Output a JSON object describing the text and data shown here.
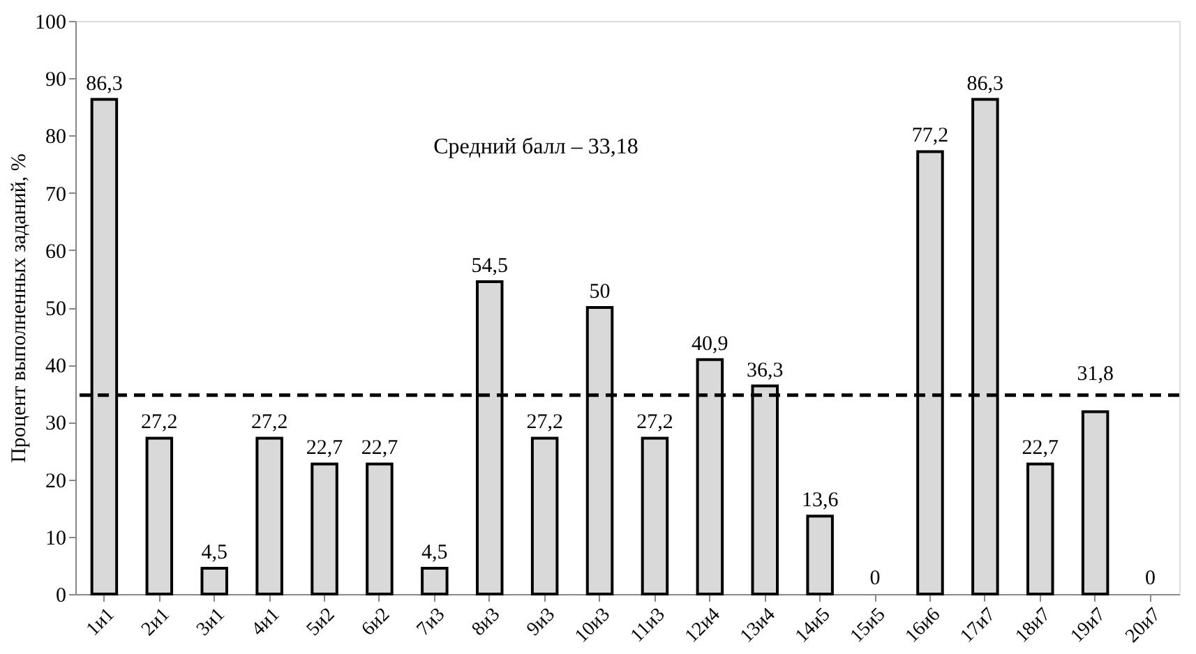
{
  "chart_data": {
    "type": "bar",
    "ylabel": "Процент выполненных заданий, %",
    "categories": [
      "1и1",
      "2и1",
      "3и1",
      "4и1",
      "5и2",
      "6и2",
      "7и3",
      "8и3",
      "9и3",
      "10и3",
      "11и3",
      "12и4",
      "13и4",
      "14и5",
      "15и5",
      "16и6",
      "17и7",
      "18и7",
      "19и7",
      "20и7"
    ],
    "values": [
      86.3,
      27.2,
      4.5,
      27.2,
      22.7,
      22.7,
      4.5,
      54.5,
      27.2,
      50,
      27.2,
      40.9,
      36.3,
      13.6,
      0,
      77.2,
      86.3,
      22.7,
      31.8,
      0
    ],
    "value_labels": [
      "86,3",
      "27,2",
      "4,5",
      "27,2",
      "22,7",
      "22,7",
      "4,5",
      "54,5",
      "27,2",
      "50",
      "27,2",
      "40,9",
      "36,3",
      "13,6",
      "0",
      "77,2",
      "86,3",
      "22,7",
      "31,8",
      "0"
    ],
    "color": "#d9d9d9",
    "ylim": [
      0,
      100
    ],
    "yticks": [
      0,
      10,
      20,
      30,
      40,
      50,
      60,
      70,
      80,
      90,
      100
    ],
    "ref_lines": [
      {
        "axis": "y",
        "value": 34.7,
        "line_style": "dashed",
        "color": "#000000"
      }
    ],
    "annotations": [
      "Средний балл – 33,18"
    ],
    "grid": false
  }
}
